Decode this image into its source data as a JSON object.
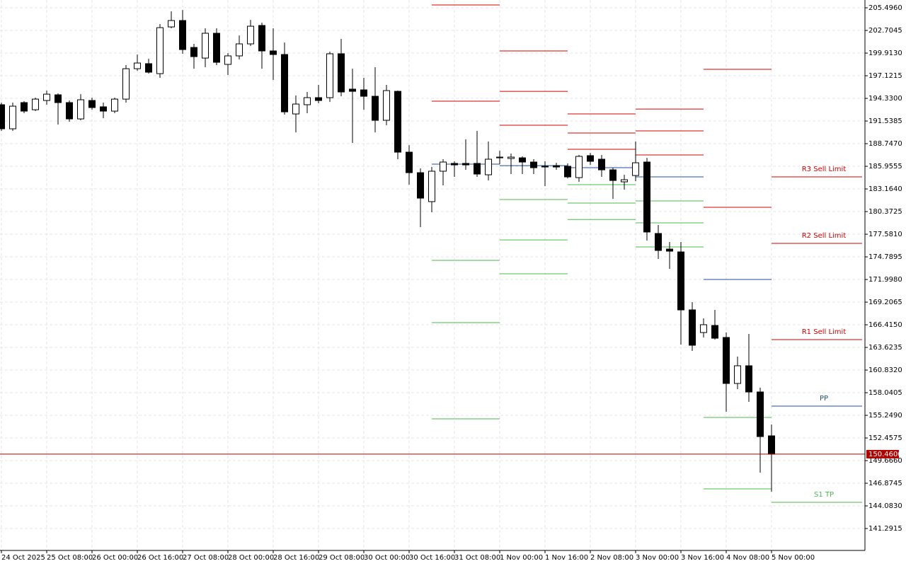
{
  "chart_data": {
    "type": "candlestick",
    "categories": [
      "24 Oct 2025",
      null,
      null,
      null,
      "25 Oct 08:00",
      null,
      null,
      null,
      "26 Oct 00:00",
      null,
      null,
      null,
      "26 Oct 16:00",
      null,
      null,
      null,
      "27 Oct 08:00",
      null,
      null,
      null,
      "28 Oct 00:00",
      null,
      null,
      null,
      "28 Oct 16:00",
      null,
      null,
      null,
      "29 Oct 08:00",
      null,
      null,
      null,
      "30 Oct 00:00",
      null,
      null,
      null,
      "30 Oct 16:00",
      null,
      null,
      null,
      "31 Oct 08:00",
      null,
      null,
      null,
      "1 Nov 00:00",
      null,
      null,
      null,
      "1 Nov 16:00",
      null,
      null,
      null,
      "2 Nov 08:00",
      null,
      null,
      null,
      "3 Nov 00:00",
      null,
      null,
      null,
      "3 Nov 16:00",
      null,
      null,
      null,
      "4 Nov 08:00",
      null,
      null,
      null,
      "5 Nov 00:00"
    ],
    "open": [
      193.55,
      190.58,
      193.81,
      192.93,
      194.07,
      194.77,
      193.81,
      191.8,
      194.07,
      193.29,
      192.76,
      194.24,
      197.99,
      198.61,
      197.38,
      203.14,
      203.93,
      200.61,
      199.3,
      202.36,
      198.52,
      199.57,
      201.05,
      203.32,
      200.18,
      199.74,
      192.41,
      193.55,
      194.42,
      194.42,
      199.83,
      195.47,
      195.38,
      194.59,
      191.63,
      195.2,
      187.7,
      185.17,
      181.6,
      185.35,
      186.31,
      186.31,
      186.31,
      184.91,
      187.0,
      186.92,
      187.0,
      186.48,
      185.96,
      186.04,
      185.96,
      184.56,
      187.27,
      186.83,
      185.52,
      184.04,
      184.82,
      186.48,
      177.67,
      175.75,
      175.4,
      168.25,
      165.46,
      166.33,
      164.85,
      159.18,
      161.36,
      158.13,
      152.72
    ],
    "high": [
      193.81,
      193.81,
      193.98,
      194.42,
      195.29,
      194.94,
      194.07,
      194.85,
      194.42,
      193.81,
      194.42,
      198.43,
      199.74,
      199.22,
      203.49,
      205.06,
      205.23,
      201.05,
      202.97,
      202.97,
      199.91,
      202.09,
      204.01,
      203.67,
      202.97,
      201.22,
      194.68,
      195.12,
      195.99,
      200.09,
      201.66,
      197.99,
      196.86,
      198.17,
      195.99,
      195.29,
      188.57,
      185.7,
      185.87,
      186.83,
      186.57,
      189.27,
      190.32,
      189.01,
      187.87,
      187.53,
      187.18,
      186.83,
      186.57,
      186.39,
      186.31,
      187.35,
      187.61,
      187.35,
      185.78,
      184.91,
      189.01,
      187.0,
      178.72,
      176.62,
      176.62,
      169.21,
      167.2,
      168.25,
      165.46,
      162.49,
      165.28,
      158.66,
      154.12
    ],
    "low": [
      190.32,
      190.32,
      192.5,
      192.76,
      193.55,
      191.1,
      191.45,
      191.63,
      192.93,
      191.89,
      192.5,
      193.81,
      197.73,
      197.38,
      196.86,
      202.97,
      199.83,
      197.99,
      198.17,
      198.43,
      197.21,
      199.13,
      200.79,
      197.99,
      196.6,
      192.33,
      190.14,
      192.5,
      193.72,
      193.89,
      194.59,
      188.84,
      192.93,
      190.14,
      191.02,
      186.83,
      183.69,
      178.46,
      180.29,
      183.6,
      184.65,
      185.52,
      184.65,
      184.21,
      186.22,
      185.0,
      185.0,
      185.0,
      183.51,
      185.52,
      184.47,
      184.04,
      186.13,
      184.65,
      181.94,
      183.08,
      184.12,
      176.8,
      174.53,
      173.31,
      163.97,
      163.19,
      164.85,
      164.59,
      155.69,
      158.48,
      156.91,
      148.19,
      145.83
    ],
    "close": [
      190.58,
      193.37,
      192.76,
      194.24,
      194.85,
      193.81,
      191.8,
      194.16,
      193.2,
      192.76,
      194.24,
      197.99,
      198.69,
      197.56,
      203.05,
      203.93,
      200.35,
      199.48,
      202.36,
      198.78,
      199.57,
      201.05,
      203.23,
      200.18,
      199.74,
      192.67,
      193.63,
      194.42,
      194.07,
      199.83,
      195.12,
      195.2,
      194.59,
      191.63,
      195.29,
      187.7,
      185.17,
      182.03,
      185.35,
      186.48,
      186.13,
      186.13,
      185.0,
      186.83,
      187.09,
      187.09,
      186.48,
      185.78,
      185.87,
      185.87,
      184.65,
      187.18,
      186.57,
      185.52,
      184.21,
      184.3,
      186.39,
      177.85,
      175.58,
      175.49,
      168.25,
      163.89,
      166.42,
      164.76,
      159.18,
      161.36,
      158.13,
      152.63,
      150.46
    ],
    "up_color": "#ffffff",
    "down_color": "#000000",
    "outline_color": "#000000",
    "ylim": [
      138.59,
      206.46
    ],
    "yticks": [
      {
        "value": 205.496,
        "label": "205.4960"
      },
      {
        "value": 202.7045,
        "label": "202.7045"
      },
      {
        "value": 199.913,
        "label": "199.9130"
      },
      {
        "value": 197.1215,
        "label": "197.1215"
      },
      {
        "value": 194.33,
        "label": "194.3300"
      },
      {
        "value": 191.5385,
        "label": "191.5385"
      },
      {
        "value": 188.747,
        "label": "188.7470"
      },
      {
        "value": 185.9555,
        "label": "185.9555"
      },
      {
        "value": 183.164,
        "label": "183.1640"
      },
      {
        "value": 180.3725,
        "label": "180.3725"
      },
      {
        "value": 177.581,
        "label": "177.5810"
      },
      {
        "value": 174.7895,
        "label": "174.7895"
      },
      {
        "value": 171.998,
        "label": "171.9980"
      },
      {
        "value": 169.2065,
        "label": "169.2065"
      },
      {
        "value": 166.415,
        "label": "166.4150"
      },
      {
        "value": 163.6235,
        "label": "163.6235"
      },
      {
        "value": 160.832,
        "label": "160.8320"
      },
      {
        "value": 158.0405,
        "label": "158.0405"
      },
      {
        "value": 155.249,
        "label": "155.2490"
      },
      {
        "value": 152.4575,
        "label": "152.4575"
      },
      {
        "value": 149.666,
        "label": "149.6660"
      },
      {
        "value": 146.8745,
        "label": "146.8745"
      },
      {
        "value": 144.083,
        "label": "144.0830"
      },
      {
        "value": 141.2915,
        "label": "141.2915"
      }
    ],
    "grid": true,
    "current_price": {
      "value": 150.46,
      "label": "150.4600"
    },
    "current_price_color": "#b00000",
    "resistance_color": "#d40000",
    "pivot_color": "#1f4e9c",
    "support_color": "#4cbb4c",
    "pivots": [
      {
        "resistance": [
          205.85,
          193.98
        ],
        "pivot": 186.22,
        "support": [
          174.36,
          166.68,
          154.82
        ]
      },
      {
        "resistance": [
          200.18,
          195.2,
          191.02
        ],
        "pivot": 186.04,
        "support": [
          181.86,
          176.88,
          172.7
        ]
      },
      {
        "resistance": [
          192.41,
          190.06,
          188.05
        ],
        "pivot": 185.78,
        "support": [
          183.69,
          181.42,
          179.4
        ]
      },
      {
        "resistance": [
          193.02,
          190.32,
          187.35
        ],
        "pivot": 184.65,
        "support": [
          181.68,
          178.98,
          176.01
        ]
      },
      {
        "resistance": [
          197.91,
          180.9
        ],
        "pivot": 172.0,
        "support": [
          154.99,
          146.18
        ]
      },
      {
        "resistance": [
          {
            "value": 184.65,
            "label": "R3 Sell Limit"
          },
          {
            "value": 176.45,
            "label": "R2 Sell Limit"
          },
          {
            "value": 164.59,
            "label": "R1 Sell Limit"
          }
        ],
        "pivot": {
          "value": 156.39,
          "label": "PP"
        },
        "support": [
          {
            "value": 144.52,
            "label": "S1 TP"
          }
        ]
      }
    ]
  }
}
